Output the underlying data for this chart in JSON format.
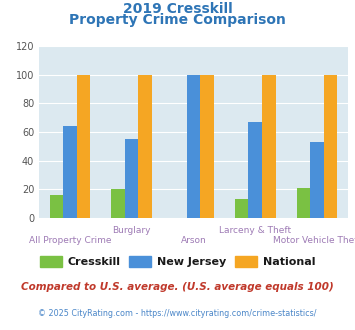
{
  "title_line1": "2019 Cresskill",
  "title_line2": "Property Crime Comparison",
  "categories": [
    "All Property Crime",
    "Burglary",
    "Arson",
    "Larceny & Theft",
    "Motor Vehicle Theft"
  ],
  "cresskill": [
    16,
    20,
    0,
    13,
    21
  ],
  "new_jersey": [
    64,
    55,
    100,
    67,
    53
  ],
  "national": [
    100,
    100,
    100,
    100,
    100
  ],
  "colors": {
    "cresskill": "#7ac143",
    "new_jersey": "#4a90d9",
    "national": "#f5a623"
  },
  "ylim": [
    0,
    120
  ],
  "yticks": [
    0,
    20,
    40,
    60,
    80,
    100,
    120
  ],
  "legend_labels": [
    "Cresskill",
    "New Jersey",
    "National"
  ],
  "footnote1": "Compared to U.S. average. (U.S. average equals 100)",
  "footnote2": "© 2025 CityRating.com - https://www.cityrating.com/crime-statistics/",
  "bg_color": "#dce9f0",
  "title_color": "#2e75b6",
  "axis_label_color": "#9e7bb5",
  "legend_text_color": "#1a1a1a",
  "footnote1_color": "#c0392b",
  "footnote2_color": "#4a86c8",
  "bar_width": 0.22
}
